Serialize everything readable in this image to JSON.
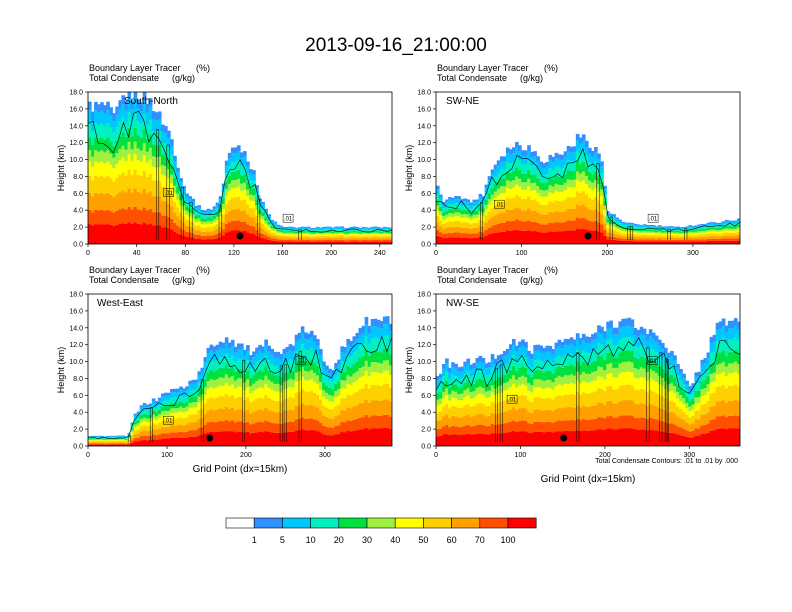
{
  "title": "2013-09-16_21:00:00",
  "chart_data": {
    "type": "heatmap",
    "title": "2013-09-16_21:00:00",
    "variables": [
      "Boundary Layer Tracer",
      "Total Condensate"
    ],
    "units": [
      "(%)",
      "(g/kg)"
    ],
    "ylabel": "Height (km)",
    "ylim": [
      0,
      18
    ],
    "yticks": [
      "0.0",
      "2.0",
      "4.0",
      "6.0",
      "8.0",
      "10.0",
      "12.0",
      "14.0",
      "16.0",
      "18.0"
    ],
    "xlabel": "Grid Point (dx=15km)",
    "contour_note": "Total Condensate Contours: .01 to .01 by .000",
    "contour_labels": [
      ".01",
      ".01",
      ".01",
      ".01",
      ".01",
      ".01",
      ".01",
      ".01"
    ],
    "colorbar": {
      "levels": [
        "1",
        "5",
        "10",
        "20",
        "30",
        "40",
        "50",
        "60",
        "70",
        "100"
      ],
      "colors": [
        "#ffffff",
        "#3090ff",
        "#00c8ff",
        "#00f0c0",
        "#00e040",
        "#a0f040",
        "#ffff00",
        "#ffd000",
        "#ffa000",
        "#ff5000",
        "#ff0000"
      ]
    },
    "panels": [
      {
        "name": "South-North",
        "xlim": [
          0,
          250
        ],
        "xticks": [
          "0",
          "40",
          "80",
          "120",
          "160",
          "200",
          "240"
        ],
        "profile": [
          [
            0,
            16.5
          ],
          [
            15,
            16.5
          ],
          [
            22,
            15
          ],
          [
            28,
            17.5
          ],
          [
            40,
            18
          ],
          [
            52,
            17
          ],
          [
            60,
            15
          ],
          [
            68,
            13
          ],
          [
            78,
            7
          ],
          [
            90,
            4.5
          ],
          [
            98,
            4
          ],
          [
            104,
            4.5
          ],
          [
            110,
            6
          ],
          [
            114,
            10
          ],
          [
            120,
            12
          ],
          [
            126,
            11.5
          ],
          [
            130,
            11
          ],
          [
            134,
            9
          ],
          [
            138,
            8
          ],
          [
            140,
            6
          ],
          [
            144,
            5
          ],
          [
            150,
            3
          ],
          [
            160,
            2
          ],
          [
            200,
            2
          ],
          [
            250,
            2
          ]
        ]
      },
      {
        "name": "SW-NE",
        "xlim": [
          0,
          355
        ],
        "xticks": [
          "0",
          "100",
          "200",
          "300"
        ],
        "profile": [
          [
            0,
            7
          ],
          [
            10,
            5
          ],
          [
            25,
            6
          ],
          [
            40,
            5
          ],
          [
            55,
            6
          ],
          [
            65,
            9
          ],
          [
            75,
            10.5
          ],
          [
            85,
            11.5
          ],
          [
            95,
            12
          ],
          [
            110,
            11.5
          ],
          [
            125,
            10
          ],
          [
            135,
            10.5
          ],
          [
            150,
            11
          ],
          [
            160,
            12
          ],
          [
            168,
            13
          ],
          [
            180,
            12
          ],
          [
            190,
            11
          ],
          [
            195,
            9
          ],
          [
            200,
            4
          ],
          [
            220,
            2.5
          ],
          [
            280,
            2
          ],
          [
            320,
            2.5
          ],
          [
            355,
            3
          ]
        ]
      },
      {
        "name": "West-East",
        "xlim": [
          0,
          385
        ],
        "xticks": [
          "0",
          "100",
          "200",
          "300"
        ],
        "profile": [
          [
            0,
            1.2
          ],
          [
            48,
            1.2
          ],
          [
            52,
            1.5
          ],
          [
            58,
            3.5
          ],
          [
            70,
            5
          ],
          [
            85,
            5.5
          ],
          [
            100,
            6.5
          ],
          [
            120,
            7
          ],
          [
            140,
            8.5
          ],
          [
            155,
            12
          ],
          [
            175,
            13
          ],
          [
            195,
            12
          ],
          [
            210,
            11
          ],
          [
            230,
            12.5
          ],
          [
            245,
            11
          ],
          [
            260,
            12.5
          ],
          [
            275,
            14
          ],
          [
            288,
            13
          ],
          [
            300,
            10
          ],
          [
            310,
            9.5
          ],
          [
            322,
            11.5
          ],
          [
            335,
            13
          ],
          [
            345,
            14.5
          ],
          [
            360,
            15
          ],
          [
            375,
            15
          ],
          [
            385,
            15
          ]
        ]
      },
      {
        "name": "NW-SE",
        "xlim": [
          0,
          360
        ],
        "xticks": [
          "0",
          "100",
          "200",
          "300"
        ],
        "profile": [
          [
            0,
            8
          ],
          [
            12,
            10
          ],
          [
            25,
            9.5
          ],
          [
            38,
            10
          ],
          [
            50,
            10.5
          ],
          [
            60,
            10
          ],
          [
            72,
            11
          ],
          [
            85,
            12
          ],
          [
            100,
            12.5
          ],
          [
            115,
            11.5
          ],
          [
            130,
            12
          ],
          [
            150,
            12.5
          ],
          [
            165,
            13
          ],
          [
            180,
            13
          ],
          [
            195,
            14
          ],
          [
            205,
            14.8
          ],
          [
            225,
            15
          ],
          [
            245,
            14
          ],
          [
            265,
            13
          ],
          [
            280,
            11
          ],
          [
            290,
            9
          ],
          [
            300,
            7
          ],
          [
            310,
            9
          ],
          [
            320,
            11
          ],
          [
            330,
            14
          ],
          [
            345,
            15
          ],
          [
            360,
            15
          ]
        ]
      }
    ]
  }
}
